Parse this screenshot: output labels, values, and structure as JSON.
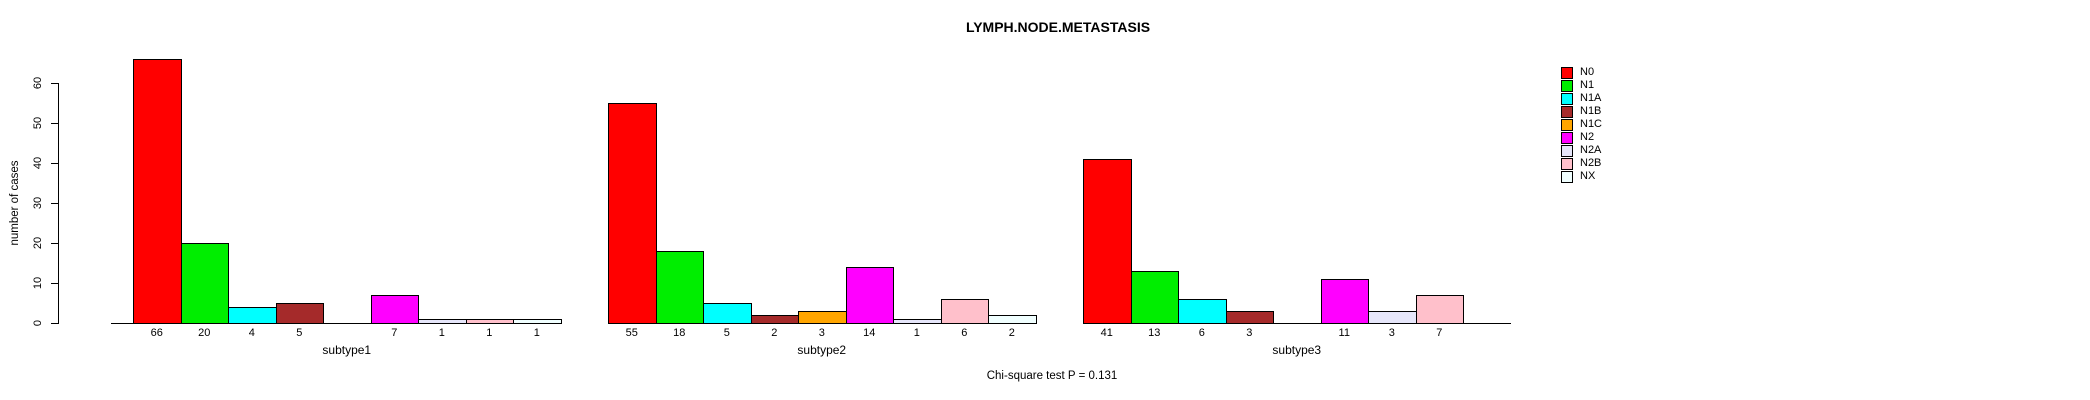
{
  "chart_data": {
    "type": "bar",
    "title": "LYMPH.NODE.METASTASIS",
    "ylabel": "number of cases",
    "xlabel": "",
    "ylim": [
      0,
      60
    ],
    "yticks": [
      0,
      10,
      20,
      30,
      40,
      50,
      60
    ],
    "grid": false,
    "legend_position": "right",
    "annotation": "Chi-square test P = 0.131",
    "categories": [
      "N0",
      "N1",
      "N1A",
      "N1B",
      "N1C",
      "N2",
      "N2A",
      "N2B",
      "NX"
    ],
    "colors": [
      "#FF0000",
      "#00EE00",
      "#00FFFF",
      "#A52A2A",
      "#FFA500",
      "#FF00FF",
      "#E6E6FA",
      "#FFC0CB",
      "#F0FFFF"
    ],
    "groups": [
      {
        "label": "subtype1",
        "values": [
          66,
          20,
          4,
          5,
          0,
          7,
          1,
          1,
          1
        ]
      },
      {
        "label": "subtype2",
        "values": [
          55,
          18,
          5,
          2,
          3,
          14,
          1,
          6,
          2
        ]
      },
      {
        "label": "subtype3",
        "values": [
          41,
          13,
          6,
          3,
          0,
          11,
          3,
          7,
          0
        ]
      }
    ],
    "legend": [
      {
        "label": "N0",
        "color": "#FF0000"
      },
      {
        "label": "N1",
        "color": "#00EE00"
      },
      {
        "label": "N1A",
        "color": "#00FFFF"
      },
      {
        "label": "N1B",
        "color": "#A52A2A"
      },
      {
        "label": "N1C",
        "color": "#FFA500"
      },
      {
        "label": "N2",
        "color": "#FF00FF"
      },
      {
        "label": "N2A",
        "color": "#E6E6FA"
      },
      {
        "label": "N2B",
        "color": "#FFC0CB"
      },
      {
        "label": "NX",
        "color": "#F0FFFF"
      }
    ]
  }
}
